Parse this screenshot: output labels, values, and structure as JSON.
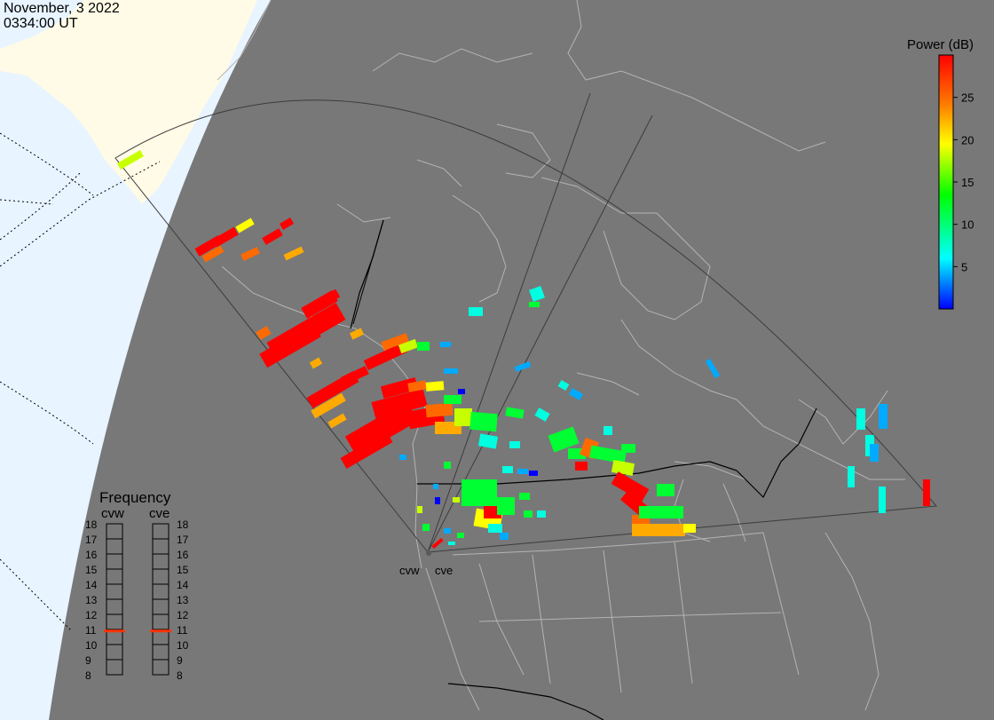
{
  "header": {
    "date": "November, 3 2022",
    "time": "0334:00 UT"
  },
  "colorbar": {
    "title": "Power (dB)",
    "ticks": [
      "5",
      "10",
      "15",
      "20",
      "25"
    ],
    "tick_values": [
      5,
      10,
      15,
      20,
      25
    ],
    "range": [
      0,
      30
    ],
    "stops": [
      "#0000ff",
      "#00ffff",
      "#00ff00",
      "#ffff00",
      "#ff8000",
      "#ff0000"
    ]
  },
  "frequency_panel": {
    "title": "Frequency",
    "radars": [
      {
        "code": "cvw",
        "current_mhz": 10.9
      },
      {
        "code": "cve",
        "current_mhz": 10.9
      }
    ],
    "scale": [
      "18",
      "17",
      "16",
      "15",
      "14",
      "13",
      "12",
      "11",
      "10",
      "9",
      "8"
    ],
    "indicator_color": "#ff3300"
  },
  "radar_sites": [
    {
      "code": "cvw"
    },
    {
      "code": "cve"
    }
  ],
  "colors": {
    "night_shade": "#787878",
    "land_day": "#fffbe6",
    "ocean_day": "#e8f4ff",
    "coastline": "#b4b4b4",
    "border": "#000000"
  }
}
